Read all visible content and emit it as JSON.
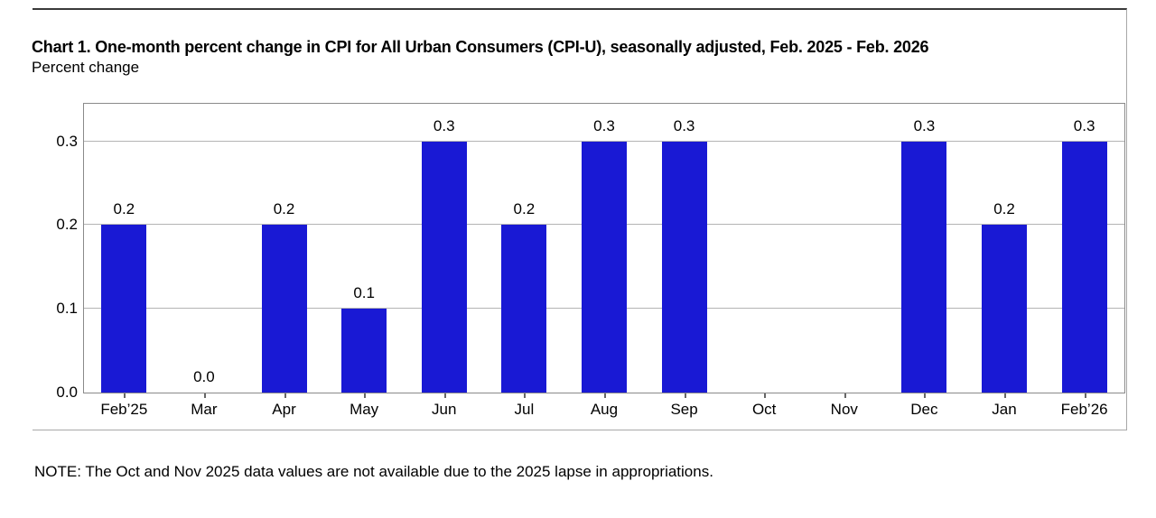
{
  "header": {
    "title": "Chart 1. One-month percent change in CPI for All Urban Consumers (CPI-U), seasonally adjusted, Feb. 2025 - Feb. 2026",
    "subtitle": "Percent change"
  },
  "chart_data": {
    "type": "bar",
    "title": "Chart 1. One-month percent change in CPI for All Urban Consumers (CPI-U), seasonally adjusted, Feb. 2025 - Feb. 2026",
    "xlabel": "",
    "ylabel": "Percent change",
    "categories": [
      "Feb’25",
      "Mar",
      "Apr",
      "May",
      "Jun",
      "Jul",
      "Aug",
      "Sep",
      "Oct",
      "Nov",
      "Dec",
      "Jan",
      "Feb’26"
    ],
    "values": [
      0.2,
      0,
      0.2,
      0.1,
      0.3,
      0.2,
      0.3,
      0.3,
      null,
      null,
      0.3,
      0.2,
      0.3
    ],
    "value_labels": [
      "0.2",
      "0.0",
      "0.2",
      "0.1",
      "0.3",
      "0.2",
      "0.3",
      "0.3",
      null,
      null,
      "0.3",
      "0.2",
      "0.3"
    ],
    "missing_categories": [
      "Oct",
      "Nov"
    ],
    "yticks": [
      0,
      0.1,
      0.2,
      0.3
    ],
    "ytick_labels": [
      "0.0",
      "0.1",
      "0.2",
      "0.3"
    ],
    "ylim": [
      0,
      0.345
    ],
    "grid": "horizontal",
    "legend_position": "none",
    "colors": {
      "bar": "#1919d4",
      "gridline": "#b4b4b4",
      "plot_border": "#8a8a8a"
    }
  },
  "note": "NOTE: The Oct and Nov 2025 data values are not available due to the 2025 lapse in appropriations."
}
